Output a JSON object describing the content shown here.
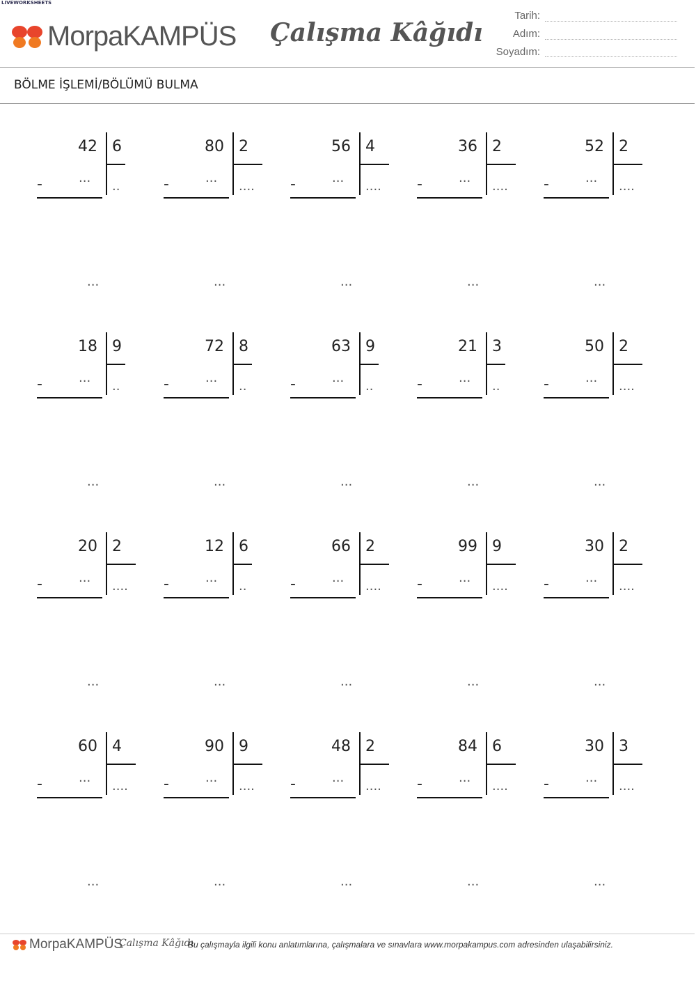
{
  "header": {
    "watermark": "LIVEWORKSHEETS",
    "logo": "MorpaKAMPÜS",
    "title": "Çalışma Kâğıdı",
    "fields": [
      "Tarih:",
      "Adım:",
      "Soyadım:"
    ],
    "subtitle": "BÖLME İŞLEMİ/BÖLÜMÜ BULMA"
  },
  "problems": [
    {
      "dividend": 42,
      "divisor": 6,
      "minus": "-",
      "product": "...",
      "quotient": "..",
      "remainder": "..."
    },
    {
      "dividend": 80,
      "divisor": 2,
      "minus": "-",
      "product": "...",
      "quotient": "....",
      "remainder": "..."
    },
    {
      "dividend": 56,
      "divisor": 4,
      "minus": "-",
      "product": "...",
      "quotient": "....",
      "remainder": "..."
    },
    {
      "dividend": 36,
      "divisor": 2,
      "minus": "-",
      "product": "...",
      "quotient": "....",
      "remainder": "..."
    },
    {
      "dividend": 52,
      "divisor": 2,
      "minus": "-",
      "product": "...",
      "quotient": "....",
      "remainder": "..."
    },
    {
      "dividend": 18,
      "divisor": 9,
      "minus": "-",
      "product": "...",
      "quotient": "..",
      "remainder": "..."
    },
    {
      "dividend": 72,
      "divisor": 8,
      "minus": "-",
      "product": "...",
      "quotient": "..",
      "remainder": "..."
    },
    {
      "dividend": 63,
      "divisor": 9,
      "minus": "-",
      "product": "...",
      "quotient": "..",
      "remainder": "..."
    },
    {
      "dividend": 21,
      "divisor": 3,
      "minus": "-",
      "product": "...",
      "quotient": "..",
      "remainder": "..."
    },
    {
      "dividend": 50,
      "divisor": 2,
      "minus": "-",
      "product": "...",
      "quotient": "....",
      "remainder": "..."
    },
    {
      "dividend": 20,
      "divisor": 2,
      "minus": "-",
      "product": "...",
      "quotient": "....",
      "remainder": "..."
    },
    {
      "dividend": 12,
      "divisor": 6,
      "minus": "-",
      "product": "...",
      "quotient": "..",
      "remainder": "..."
    },
    {
      "dividend": 66,
      "divisor": 2,
      "minus": "-",
      "product": "...",
      "quotient": "....",
      "remainder": "..."
    },
    {
      "dividend": 99,
      "divisor": 9,
      "minus": "-",
      "product": "...",
      "quotient": "....",
      "remainder": "..."
    },
    {
      "dividend": 30,
      "divisor": 2,
      "minus": "-",
      "product": "...",
      "quotient": "....",
      "remainder": "..."
    },
    {
      "dividend": 60,
      "divisor": 4,
      "minus": "-",
      "product": "...",
      "quotient": "....",
      "remainder": "..."
    },
    {
      "dividend": 90,
      "divisor": 9,
      "minus": "-",
      "product": "...",
      "quotient": "....",
      "remainder": "..."
    },
    {
      "dividend": 48,
      "divisor": 2,
      "minus": "-",
      "product": "...",
      "quotient": "....",
      "remainder": "..."
    },
    {
      "dividend": 84,
      "divisor": 6,
      "minus": "-",
      "product": "...",
      "quotient": "....",
      "remainder": "..."
    },
    {
      "dividend": 30,
      "divisor": 3,
      "minus": "-",
      "product": "...",
      "quotient": "....",
      "remainder": "..."
    }
  ],
  "footer": {
    "logo": "MorpaKAMPÜS",
    "title": "Çalışma Kâğıdı",
    "note": "Bu çalışmayla ilgili konu anlatımlarına, çalışmalara ve sınavlara www.morpakampus.com adresinden ulaşabilirsiniz."
  }
}
